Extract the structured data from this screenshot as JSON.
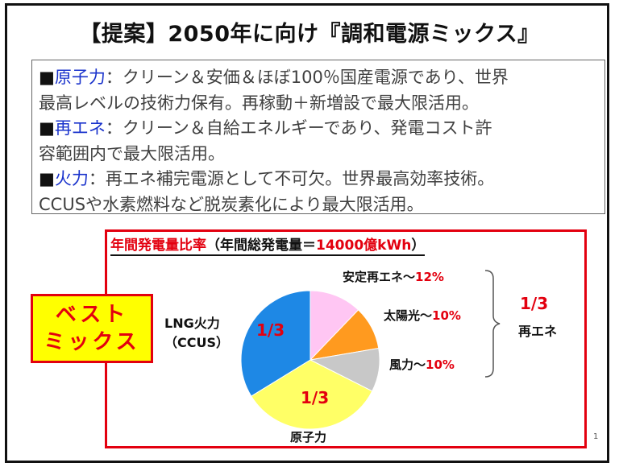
{
  "title": "【提案】2050年に向け『調和電源ミックス』",
  "bullets": [
    {
      "marker": "■",
      "head": "原子力",
      "line1": "：クリーン＆安価＆ほぼ100％国産電源であり、世界",
      "line2": "最高レベルの技術力保有。再稼動＋新増設で最大限活用。"
    },
    {
      "marker": "■",
      "head": "再エネ",
      "line1": "：クリーン＆自給エネルギーであり、発電コスト許",
      "line2": "容範囲内で最大限活用。"
    },
    {
      "marker": "■",
      "head": "火力",
      "line1": "：再エネ補完電源として不可欠。世界最高効率技術。",
      "line2": "CCUSや水素燃料など脱炭素化により最大限活用。"
    }
  ],
  "chart": {
    "title_red": "年間発電量比率",
    "title_paren_open": "（年間総発電量＝",
    "title_value": "14000億kWh",
    "title_paren_close": "）",
    "best_line1": "ベスト",
    "best_line2": "ミックス",
    "lng_label_line1": "LNG火力",
    "lng_label_line2": "（CCUS）",
    "nuclear_label": "原子力",
    "lng_fraction": "1/3",
    "nuclear_fraction": "1/3",
    "renew_fraction": "1/3",
    "renew_group_label": "再エネ",
    "stable_label": "安定再エネ～",
    "stable_pct": "12%",
    "solar_label": "太陽光～",
    "solar_pct": "10%",
    "wind_label": "風力～",
    "wind_pct": "10%",
    "colors": {
      "lng": "#1e88e5",
      "nuclear": "#ffff66",
      "stable": "#ffc6f3",
      "solar": "#ff9a1f",
      "wind": "#c8c8c8"
    }
  },
  "page_number": "1",
  "chart_data": {
    "type": "pie",
    "labels": [
      "安定再エネ",
      "太陽光",
      "風力",
      "原子力",
      "LNG火力（CCUS）"
    ],
    "values": [
      12,
      10,
      10,
      33.3,
      33.3
    ],
    "title": "年間発電量比率（年間総発電量＝14000億kWh）"
  }
}
